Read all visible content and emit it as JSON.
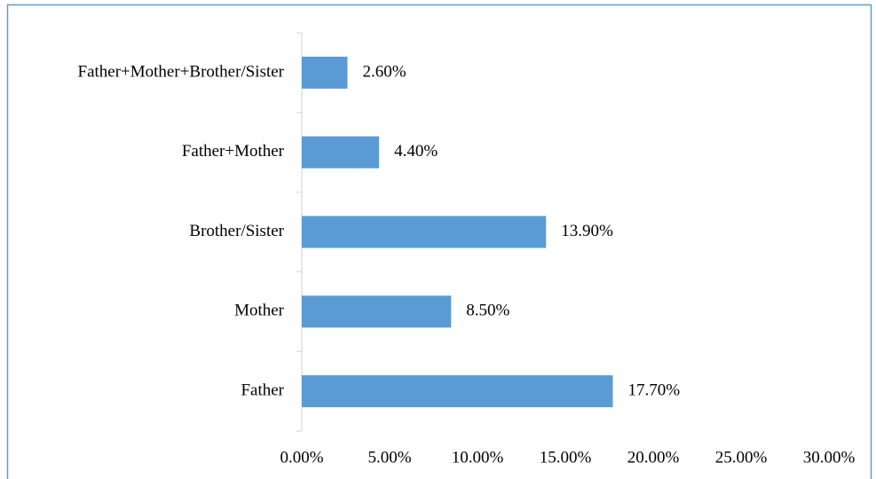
{
  "chart_data": {
    "type": "barh",
    "categories": [
      "Father",
      "Mother",
      "Brother/Sister",
      "Father+Mother",
      "Father+Mother+Brother/Sister"
    ],
    "values": [
      17.7,
      8.5,
      13.9,
      4.4,
      2.6
    ],
    "value_labels": [
      "17.70%",
      "8.50%",
      "13.90%",
      "4.40%",
      "2.60%"
    ],
    "color": "#5b9bd5",
    "xlim": [
      0,
      30
    ],
    "xticks": [
      {
        "value": 0,
        "label": "0.00%"
      },
      {
        "value": 5,
        "label": "5.00%"
      },
      {
        "value": 10,
        "label": "10.00%"
      },
      {
        "value": 15,
        "label": "15.00%"
      },
      {
        "value": 20,
        "label": "20.00%"
      },
      {
        "value": 25,
        "label": "25.00%"
      },
      {
        "value": 30,
        "label": "30.00%"
      }
    ],
    "grid": false
  }
}
